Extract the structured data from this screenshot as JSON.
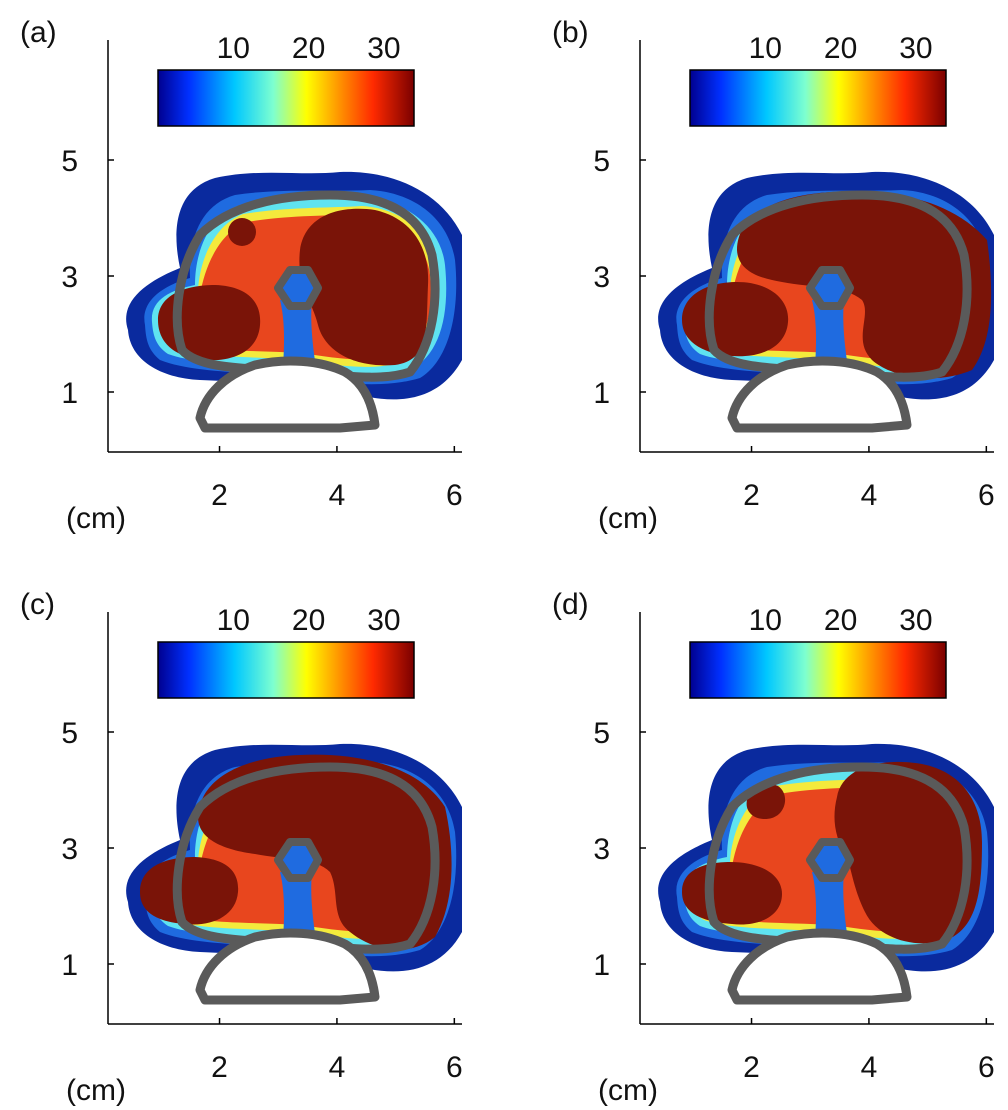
{
  "chart_data": [
    {
      "type": "heatmap",
      "panel_label": "(a)",
      "xlabel": "(cm)",
      "ylabel": "",
      "xlim": [
        0,
        6
      ],
      "ylim": [
        0,
        7
      ],
      "xticks": [
        2,
        4,
        6
      ],
      "yticks": [
        1,
        3,
        5
      ],
      "colorbar": {
        "ticks": [
          10,
          20,
          30
        ],
        "range": [
          0,
          34
        ],
        "colormap": "jet"
      },
      "grid": false
    },
    {
      "type": "heatmap",
      "panel_label": "(b)",
      "xlabel": "(cm)",
      "ylabel": "",
      "xlim": [
        0,
        6
      ],
      "ylim": [
        0,
        7
      ],
      "xticks": [
        2,
        4,
        6
      ],
      "yticks": [
        1,
        3,
        5
      ],
      "colorbar": {
        "ticks": [
          10,
          20,
          30
        ],
        "range": [
          0,
          34
        ],
        "colormap": "jet"
      },
      "grid": false
    },
    {
      "type": "heatmap",
      "panel_label": "(c)",
      "xlabel": "(cm)",
      "ylabel": "",
      "xlim": [
        0,
        6
      ],
      "ylim": [
        0,
        7
      ],
      "xticks": [
        2,
        4,
        6
      ],
      "yticks": [
        1,
        3,
        5
      ],
      "colorbar": {
        "ticks": [
          10,
          20,
          30
        ],
        "range": [
          0,
          34
        ],
        "colormap": "jet"
      },
      "grid": false
    },
    {
      "type": "heatmap",
      "panel_label": "(d)",
      "xlabel": "(cm)",
      "ylabel": "",
      "xlim": [
        0,
        6
      ],
      "ylim": [
        0,
        7
      ],
      "xticks": [
        2,
        4,
        6
      ],
      "yticks": [
        1,
        3,
        5
      ],
      "colorbar": {
        "ticks": [
          10,
          20,
          30
        ],
        "range": [
          0,
          34
        ],
        "colormap": "jet"
      },
      "grid": false
    }
  ],
  "colors": {
    "level_1": "#0a2a9e",
    "level_2": "#1f6be0",
    "level_3": "#5fe3f0",
    "level_4": "#f4ea3c",
    "level_5": "#e8461e",
    "level_6": "#7a1408",
    "contour": "#5a5a5a",
    "axis": "#000000"
  }
}
